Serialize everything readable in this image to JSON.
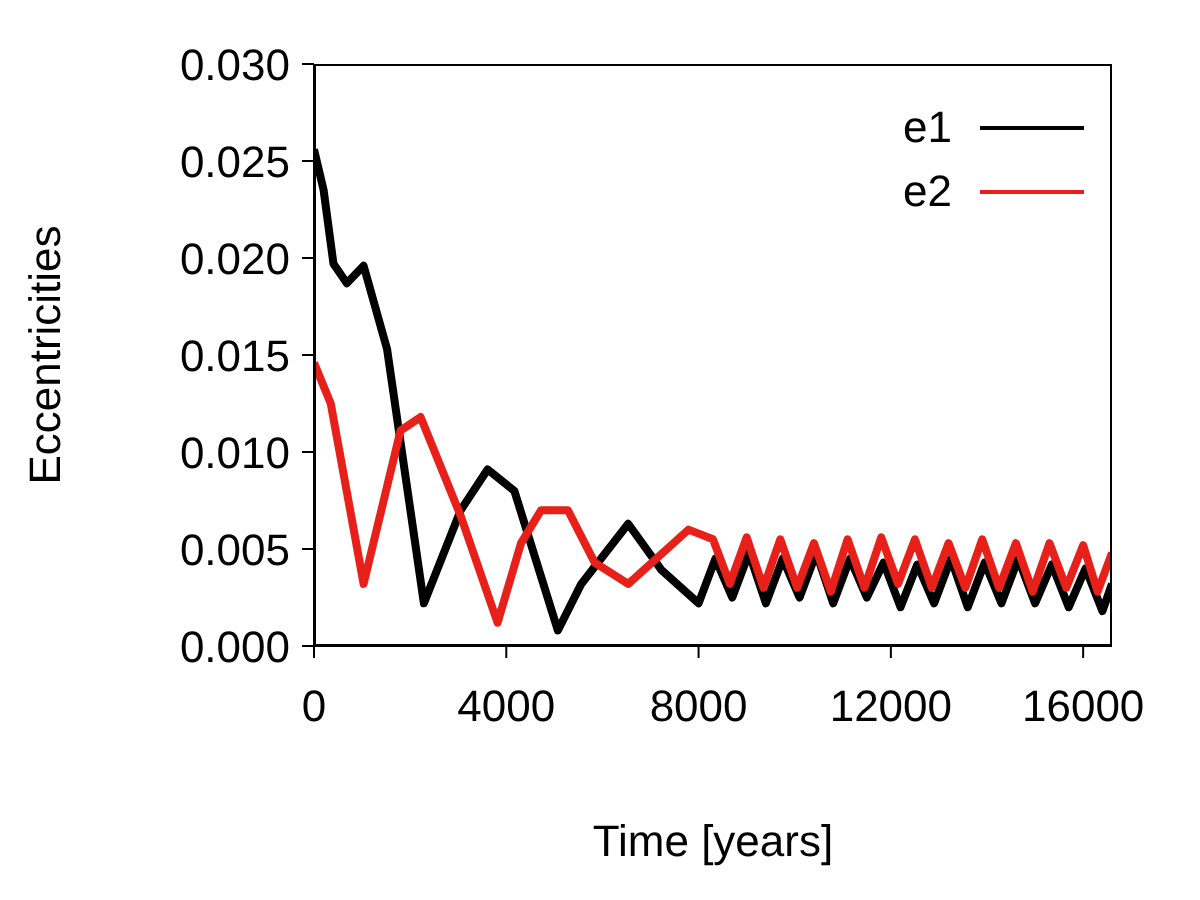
{
  "chart_data": {
    "type": "line",
    "xlabel": "Time [years]",
    "ylabel": "Eccentricities",
    "xlim": [
      0,
      16600
    ],
    "xticks": [
      0,
      4000,
      8000,
      12000,
      16000
    ],
    "ylim": [
      0,
      0.03
    ],
    "yticks": [
      {
        "value": 0,
        "label": "0.000"
      },
      {
        "value": 0.005,
        "label": "0.005"
      },
      {
        "value": 0.01,
        "label": "0.010"
      },
      {
        "value": 0.015,
        "label": "0.015"
      },
      {
        "value": 0.02,
        "label": "0.020"
      },
      {
        "value": 0.025,
        "label": "0.025"
      },
      {
        "value": 0.03,
        "label": "0.030"
      }
    ],
    "grid": false,
    "legend": "top right",
    "marker": "none",
    "line_style": "solid",
    "series": [
      {
        "name": "e1",
        "color": "#000000",
        "x": [
          0,
          200,
          405,
          683,
          1032,
          1520,
          2286,
          3052,
          3610,
          4167,
          5073,
          5560,
          6536,
          7233,
          8000,
          8350,
          8700,
          9050,
          9400,
          9750,
          10100,
          10450,
          10800,
          11150,
          11500,
          11850,
          12200,
          12550,
          12900,
          13250,
          13600,
          13950,
          14300,
          14650,
          15000,
          15350,
          15700,
          16050,
          16400,
          16600
        ],
        "values": [
          0.0256,
          0.0235,
          0.0197,
          0.0187,
          0.0196,
          0.0153,
          0.0022,
          0.007,
          0.0091,
          0.008,
          0.0008,
          0.0032,
          0.0063,
          0.0039,
          0.0022,
          0.0045,
          0.0025,
          0.0048,
          0.0022,
          0.0045,
          0.0025,
          0.0048,
          0.0022,
          0.0045,
          0.0025,
          0.0043,
          0.002,
          0.0042,
          0.0022,
          0.0045,
          0.002,
          0.0043,
          0.0022,
          0.0045,
          0.0022,
          0.0042,
          0.002,
          0.004,
          0.0018,
          0.0032
        ]
      },
      {
        "name": "e2",
        "color": "#e8201a",
        "x": [
          0,
          348,
          1032,
          1799,
          2217,
          3052,
          3819,
          4307,
          4725,
          5282,
          5839,
          6536,
          7790,
          8300,
          8650,
          9000,
          9350,
          9700,
          10050,
          10400,
          10750,
          11100,
          11450,
          11800,
          12150,
          12500,
          12850,
          13200,
          13550,
          13900,
          14250,
          14600,
          14950,
          15300,
          15650,
          16000,
          16300,
          16600
        ],
        "values": [
          0.0146,
          0.0125,
          0.0032,
          0.0111,
          0.0118,
          0.0067,
          0.0012,
          0.0053,
          0.007,
          0.007,
          0.0043,
          0.0032,
          0.006,
          0.0055,
          0.0032,
          0.0056,
          0.003,
          0.0055,
          0.003,
          0.0053,
          0.0028,
          0.0055,
          0.003,
          0.0056,
          0.0032,
          0.0055,
          0.003,
          0.0053,
          0.003,
          0.0055,
          0.003,
          0.0053,
          0.0028,
          0.0053,
          0.003,
          0.0052,
          0.0028,
          0.0048
        ]
      }
    ]
  }
}
